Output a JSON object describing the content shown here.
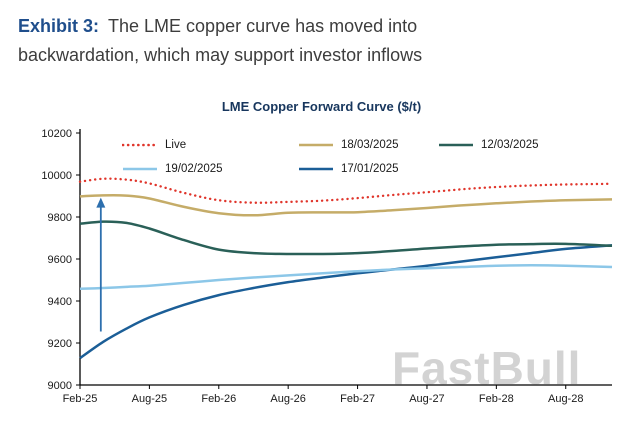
{
  "header": {
    "exhibit_label": "Exhibit 3:",
    "title_line1": "The LME copper curve has moved into",
    "title_line2": "backwardation, which may support investor inflows"
  },
  "page": {
    "watermark": "FastBull"
  },
  "chart_data": {
    "type": "line",
    "title": "LME Copper Forward Curve ($/t)",
    "xlim": [
      0,
      46
    ],
    "ylim": [
      9000,
      10200
    ],
    "y_ticks": [
      9000,
      9200,
      9400,
      9600,
      9800,
      10000,
      10200
    ],
    "x_ticks": [
      {
        "x": 0,
        "label": "Feb-25"
      },
      {
        "x": 6,
        "label": "Aug-25"
      },
      {
        "x": 12,
        "label": "Feb-26"
      },
      {
        "x": 18,
        "label": "Aug-26"
      },
      {
        "x": 24,
        "label": "Feb-27"
      },
      {
        "x": 30,
        "label": "Aug-27"
      },
      {
        "x": 36,
        "label": "Feb-28"
      },
      {
        "x": 42,
        "label": "Aug-28"
      }
    ],
    "x_months_from_first_tick": [
      0,
      2,
      4,
      6,
      9,
      12,
      15,
      18,
      21,
      24,
      27,
      30,
      33,
      36,
      39,
      42,
      46
    ],
    "series": [
      {
        "name": "Live",
        "color": "#e0352b",
        "style": "dotted",
        "x": [
          0,
          2,
          4,
          6,
          9,
          12,
          15,
          18,
          21,
          24,
          27,
          30,
          33,
          36,
          39,
          42,
          46
        ],
        "values": [
          9968,
          9982,
          9978,
          9960,
          9915,
          9880,
          9868,
          9872,
          9878,
          9890,
          9905,
          9918,
          9932,
          9943,
          9950,
          9955,
          9958
        ]
      },
      {
        "name": "18/03/2025",
        "color": "#c5ac68",
        "style": "solid",
        "x": [
          0,
          2,
          4,
          6,
          9,
          12,
          15,
          18,
          21,
          24,
          27,
          30,
          33,
          36,
          39,
          42,
          46
        ],
        "values": [
          9898,
          9903,
          9902,
          9888,
          9848,
          9818,
          9808,
          9820,
          9822,
          9823,
          9832,
          9843,
          9855,
          9865,
          9874,
          9880,
          9884
        ]
      },
      {
        "name": "12/03/2025",
        "color": "#2a6058",
        "style": "solid",
        "x": [
          0,
          2,
          4,
          6,
          9,
          12,
          15,
          18,
          21,
          24,
          27,
          30,
          33,
          36,
          39,
          42,
          46
        ],
        "values": [
          9768,
          9778,
          9772,
          9745,
          9690,
          9645,
          9628,
          9624,
          9624,
          9628,
          9638,
          9650,
          9660,
          9668,
          9671,
          9672,
          9663
        ]
      },
      {
        "name": "19/02/2025",
        "color": "#8cc7e8",
        "style": "solid",
        "x": [
          0,
          2,
          4,
          6,
          9,
          12,
          15,
          18,
          21,
          24,
          27,
          30,
          33,
          36,
          39,
          42,
          46
        ],
        "values": [
          9458,
          9462,
          9467,
          9473,
          9486,
          9500,
          9512,
          9522,
          9532,
          9542,
          9550,
          9556,
          9562,
          9568,
          9570,
          9568,
          9562
        ]
      },
      {
        "name": "17/01/2025",
        "color": "#1b5e97",
        "style": "solid",
        "x": [
          0,
          2,
          4,
          6,
          9,
          12,
          15,
          18,
          21,
          24,
          27,
          30,
          33,
          36,
          39,
          42,
          46
        ],
        "values": [
          9128,
          9205,
          9268,
          9322,
          9382,
          9428,
          9462,
          9490,
          9512,
          9532,
          9550,
          9568,
          9588,
          9608,
          9628,
          9648,
          9665
        ]
      }
    ],
    "annotation_arrow": {
      "x": 1.8,
      "y_start": 9255,
      "y_end": 9892,
      "color": "#2d6fae"
    },
    "legend_position": "top-inside",
    "grid": false
  }
}
